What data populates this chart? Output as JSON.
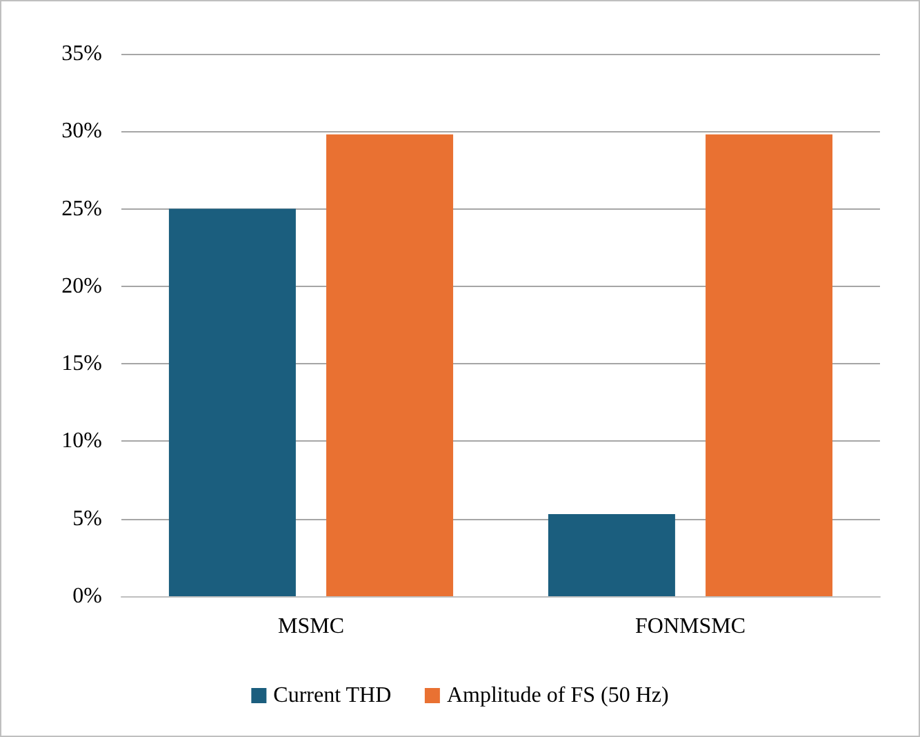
{
  "chart_data": {
    "type": "bar",
    "categories": [
      "MSMC",
      "FONMSMC"
    ],
    "series": [
      {
        "name": "Current THD",
        "color": "#1b5e7e",
        "values": [
          25,
          5.3
        ]
      },
      {
        "name": "Amplitude of FS (50 Hz)",
        "color": "#e97132",
        "values": [
          29.8,
          29.8
        ]
      }
    ],
    "ylim": [
      0,
      35
    ],
    "yticks": [
      {
        "value": 0,
        "label": "0%"
      },
      {
        "value": 5,
        "label": "5%"
      },
      {
        "value": 10,
        "label": "10%"
      },
      {
        "value": 15,
        "label": "15%"
      },
      {
        "value": 20,
        "label": "20%"
      },
      {
        "value": 25,
        "label": "25%"
      },
      {
        "value": 30,
        "label": "30%"
      },
      {
        "value": 35,
        "label": "35%"
      }
    ],
    "grid": "y",
    "legend": "bottom"
  }
}
